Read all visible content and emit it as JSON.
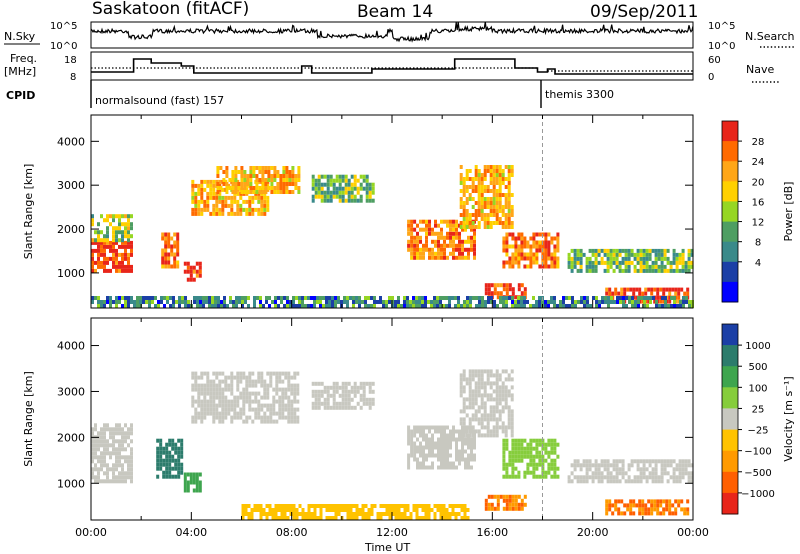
{
  "header": {
    "station": "Saskatoon (fitACF)",
    "beam": "Beam 14",
    "date": "09/Sep/2011"
  },
  "strips": {
    "nsky_label": "N.Sky",
    "nsearch_label": "N.Search",
    "nsky_ticks": [
      "10^5",
      "10^0"
    ],
    "nsearch_ticks": [
      "10^5",
      "10^0"
    ],
    "freq_label": "Freq.",
    "freq_unit": "[MHz]",
    "freq_ticks": [
      "18",
      "8"
    ],
    "nave_label": "Nave",
    "nave_ticks": [
      "60",
      "0"
    ],
    "cpid_label": "CPID",
    "cpid_modes": [
      {
        "name": "normalsound (fast) 157",
        "start_hour": 0
      },
      {
        "name": "themis 3300",
        "start_hour": 18
      }
    ]
  },
  "chart_data": [
    {
      "type": "heatmap",
      "panel": "power",
      "ylabel": "Slant Range [km]",
      "xlabel": "",
      "colorbar_label": "Power [dB]",
      "colorbar_ticks": [
        "28",
        "24",
        "20",
        "16",
        "12",
        "8",
        "4"
      ],
      "colorbar_colors": [
        "#e8251a",
        "#ff6a00",
        "#ffa617",
        "#ffd000",
        "#96d623",
        "#4e9e62",
        "#3a8a8a",
        "#1b3fa6",
        "#0000ff"
      ],
      "xlim": [
        0,
        24
      ],
      "ylim": [
        200,
        4600
      ],
      "yticks": [
        1000,
        2000,
        3000,
        4000
      ],
      "regions": [
        {
          "t0": 0.0,
          "t1": 1.6,
          "r0": 1000,
          "r1": 1700,
          "level": 28
        },
        {
          "t0": 0.0,
          "t1": 1.6,
          "r0": 1700,
          "r1": 2300,
          "level": 14
        },
        {
          "t0": 2.8,
          "t1": 3.5,
          "r0": 1100,
          "r1": 1900,
          "level": 24
        },
        {
          "t0": 3.7,
          "t1": 4.4,
          "r0": 800,
          "r1": 1200,
          "level": 28
        },
        {
          "t0": 4.0,
          "t1": 7.0,
          "r0": 2300,
          "r1": 3100,
          "level": 20
        },
        {
          "t0": 5.0,
          "t1": 8.3,
          "r0": 2800,
          "r1": 3400,
          "level": 20
        },
        {
          "t0": 8.8,
          "t1": 11.2,
          "r0": 2600,
          "r1": 3200,
          "level": 12
        },
        {
          "t0": 12.6,
          "t1": 15.3,
          "r0": 1300,
          "r1": 2200,
          "level": 24
        },
        {
          "t0": 14.7,
          "t1": 16.8,
          "r0": 2000,
          "r1": 3400,
          "level": 20
        },
        {
          "t0": 15.7,
          "t1": 17.3,
          "r0": 400,
          "r1": 700,
          "level": 28
        },
        {
          "t0": 16.4,
          "t1": 18.6,
          "r0": 1100,
          "r1": 1900,
          "level": 24
        },
        {
          "t0": 19.0,
          "t1": 24.0,
          "r0": 1000,
          "r1": 1500,
          "level": 12
        },
        {
          "t0": 20.5,
          "t1": 23.8,
          "r0": 300,
          "r1": 600,
          "level": 28
        },
        {
          "t0": 0.0,
          "t1": 24.0,
          "r0": 200,
          "r1": 450,
          "level": 8
        }
      ]
    },
    {
      "type": "heatmap",
      "panel": "velocity",
      "ylabel": "Slant Range [km]",
      "xlabel": "Time UT",
      "colorbar_label": "Velocity [m s⁻¹]",
      "colorbar_ticks": [
        "1000",
        "500",
        "100",
        "25",
        "−25",
        "−100",
        "−500",
        "−1000"
      ],
      "colorbar_colors": [
        "#1b3fa6",
        "#2c7c6c",
        "#3ea54e",
        "#86cd3c",
        "#c8c8c0",
        "#ffc300",
        "#ff9a00",
        "#ff5f00",
        "#e8251a"
      ],
      "xlim": [
        0,
        24
      ],
      "ylim": [
        200,
        4600
      ],
      "yticks": [
        1000,
        2000,
        3000,
        4000
      ],
      "xticks": [
        "00:00",
        "04:00",
        "08:00",
        "12:00",
        "16:00",
        "20:00",
        "00:00"
      ],
      "regions": [
        {
          "t0": 0.0,
          "t1": 1.6,
          "r0": 1000,
          "r1": 2300,
          "level": 0
        },
        {
          "t0": 2.6,
          "t1": 3.6,
          "r0": 1100,
          "r1": 1900,
          "level": 700
        },
        {
          "t0": 3.7,
          "t1": 4.4,
          "r0": 800,
          "r1": 1200,
          "level": 300
        },
        {
          "t0": 4.0,
          "t1": 8.3,
          "r0": 2300,
          "r1": 3400,
          "level": 0
        },
        {
          "t0": 8.8,
          "t1": 11.2,
          "r0": 2600,
          "r1": 3200,
          "level": 0
        },
        {
          "t0": 12.6,
          "t1": 15.3,
          "r0": 1300,
          "r1": 2200,
          "level": 0
        },
        {
          "t0": 14.7,
          "t1": 16.8,
          "r0": 2000,
          "r1": 3400,
          "level": 0
        },
        {
          "t0": 15.7,
          "t1": 17.3,
          "r0": 400,
          "r1": 700,
          "level": -400
        },
        {
          "t0": 16.4,
          "t1": 18.6,
          "r0": 1100,
          "r1": 1900,
          "level": 60
        },
        {
          "t0": 19.0,
          "t1": 24.0,
          "r0": 1000,
          "r1": 1500,
          "level": 0
        },
        {
          "t0": 20.5,
          "t1": 23.8,
          "r0": 300,
          "r1": 600,
          "level": -400
        },
        {
          "t0": 6.0,
          "t1": 15.0,
          "r0": 200,
          "r1": 500,
          "level": -60
        }
      ]
    }
  ]
}
